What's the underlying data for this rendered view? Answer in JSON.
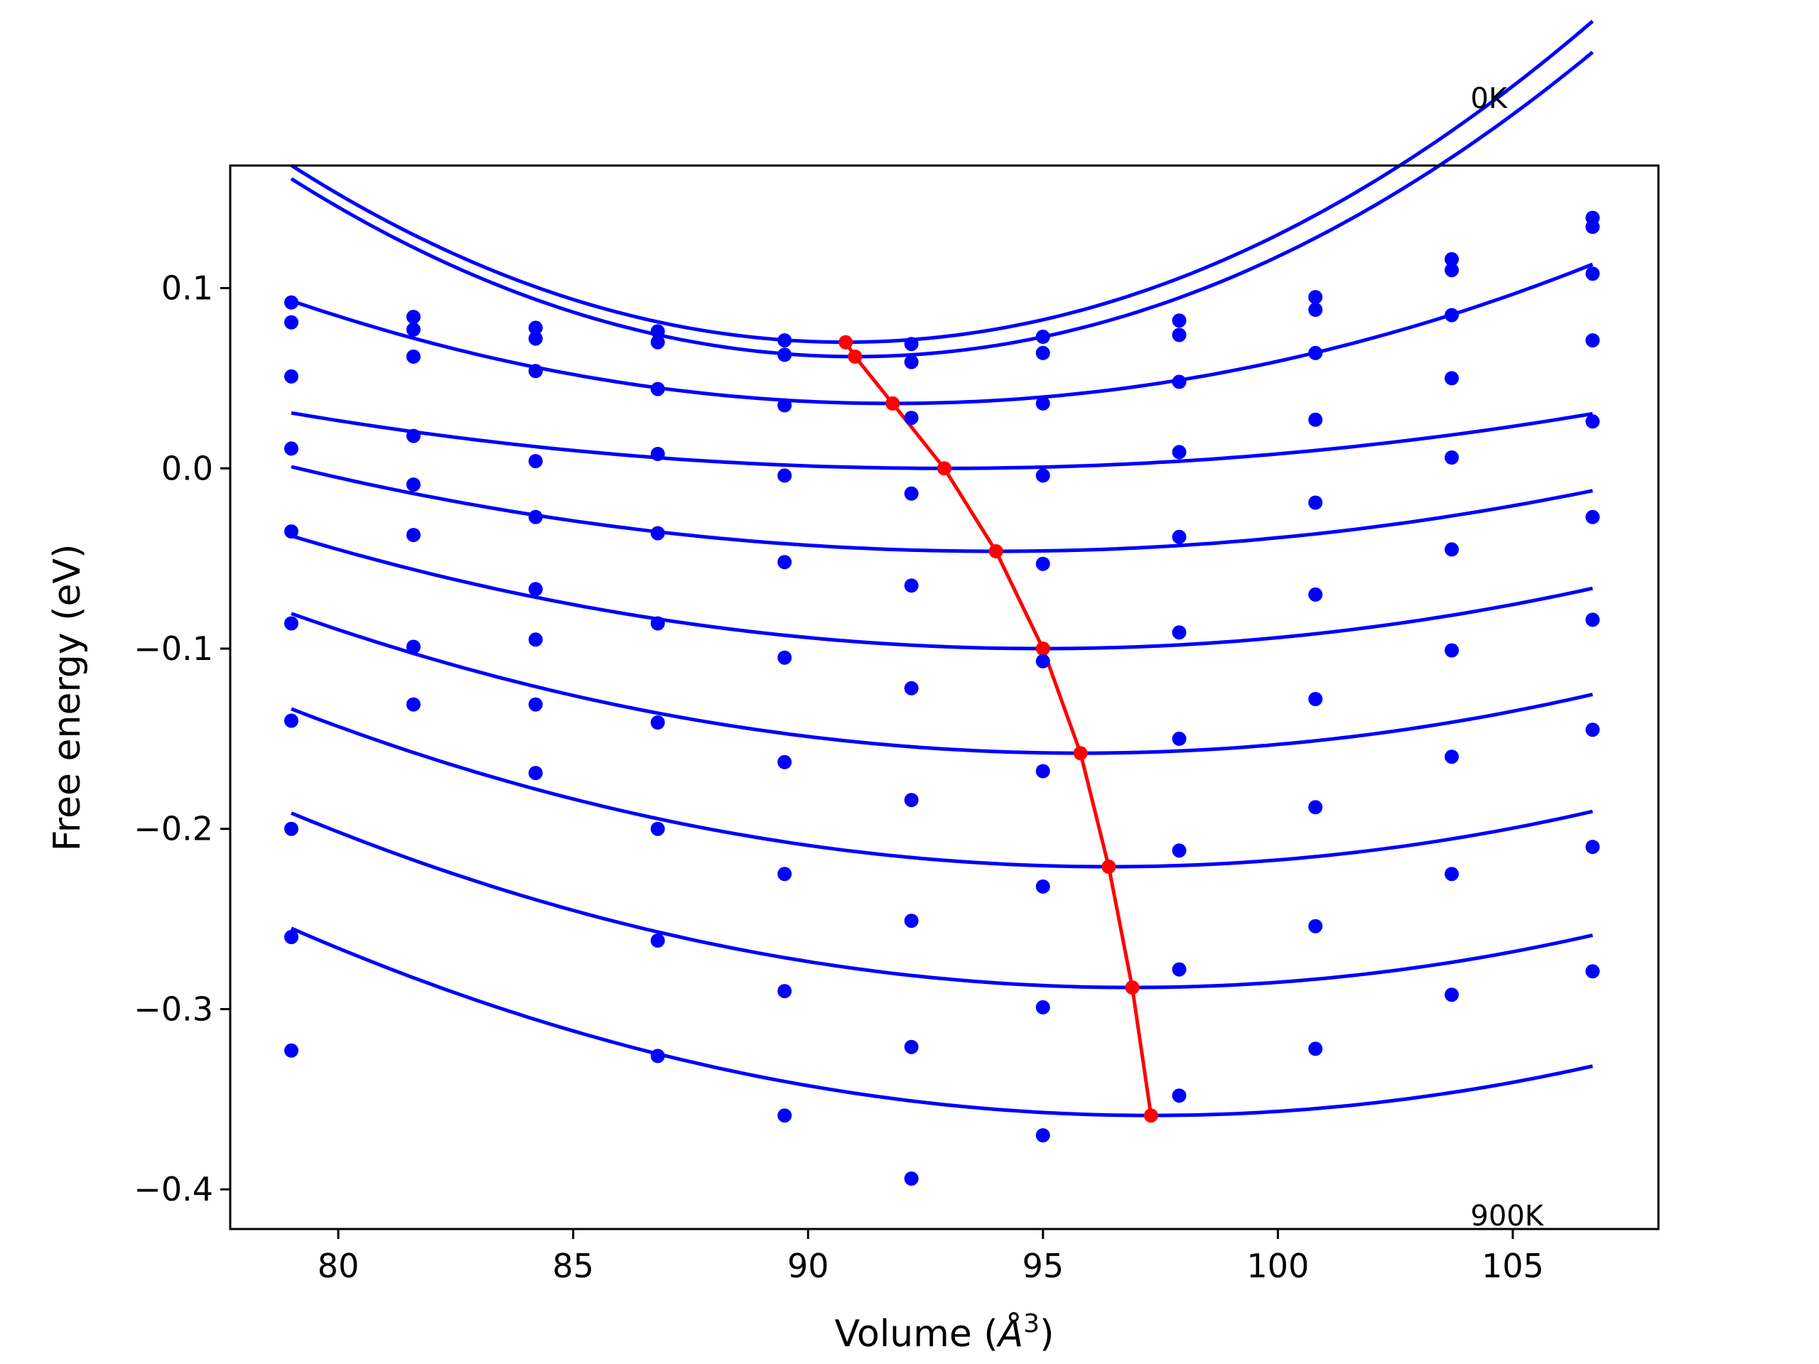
{
  "chart_data": {
    "type": "scatter",
    "title": "",
    "xlabel": "Volume (",
    "xlabel_symbol": "Å",
    "xlabel_superscript": "3",
    "xlabel_end": ")",
    "ylabel": "Free energy (eV)",
    "xlim": [
      77.7,
      108.1
    ],
    "ylim": [
      -0.422,
      0.168
    ],
    "xticks": [
      80,
      85,
      90,
      95,
      100,
      105
    ],
    "xtick_labels": [
      "80",
      "85",
      "90",
      "95",
      "100",
      "105"
    ],
    "yticks": [
      0.1,
      0.0,
      -0.1,
      -0.2,
      -0.3,
      -0.4
    ],
    "ytick_labels": [
      "0.1",
      "0.0",
      "−0.1",
      "−0.2",
      "−0.3",
      "−0.4"
    ],
    "annotations": [
      {
        "text": "0K",
        "x": 104.1,
        "y": 0.2
      },
      {
        "text": "900K",
        "x": 104.1,
        "y": -0.42
      }
    ],
    "colors": {
      "points": "#0000ff",
      "fits": "#0000ff",
      "minima": "#ff0000",
      "axes": "#000000"
    },
    "volumes": [
      79.0,
      81.6,
      84.2,
      86.8,
      89.5,
      92.2,
      95.0,
      97.9,
      100.8,
      103.7,
      106.7
    ],
    "series": [
      {
        "points": [
          0.092,
          0.084,
          0.078,
          0.076,
          0.071,
          0.069,
          0.073,
          0.082,
          0.095,
          0.116,
          0.139
        ],
        "fit_coeffs": [
          0.0007044,
          0.07
        ],
        "v_min": 90.8
      },
      {
        "points": [
          0.081,
          0.077,
          0.072,
          0.07,
          0.063,
          0.059,
          0.064,
          0.074,
          0.088,
          0.11,
          0.134
        ],
        "fit_coeffs": [
          0.0006853,
          0.062
        ],
        "v_min": 91.0
      },
      {
        "points": [
          0.051,
          0.062,
          0.054,
          0.044,
          0.035,
          0.028,
          0.036,
          0.048,
          0.064,
          0.085,
          0.108
        ],
        "fit_coeffs": [
          0.0003478,
          0.036
        ],
        "v_min": 91.8
      },
      {
        "points": [
          0.011,
          0.018,
          0.004,
          0.008,
          -0.004,
          -0.014,
          -0.004,
          0.009,
          0.027,
          0.05,
          0.071
        ],
        "fit_coeffs": [
          0.0001591,
          0.0
        ],
        "v_min": 92.9
      },
      {
        "points": [
          -0.035,
          -0.009,
          -0.027,
          -0.036,
          -0.052,
          -0.065,
          -0.053,
          -0.038,
          -0.019,
          0.006,
          0.026
        ],
        "fit_coeffs": [
          0.0002084,
          -0.046
        ],
        "v_min": 94.0
      },
      {
        "points": [
          -0.086,
          -0.037,
          -0.067,
          -0.086,
          -0.105,
          -0.122,
          -0.107,
          -0.091,
          -0.07,
          -0.045,
          -0.027
        ],
        "fit_coeffs": [
          0.0002443,
          -0.1
        ],
        "v_min": 95.0
      },
      {
        "points": [
          -0.14,
          -0.099,
          -0.095,
          -0.141,
          -0.163,
          -0.184,
          -0.168,
          -0.15,
          -0.128,
          -0.101,
          -0.084
        ],
        "fit_coeffs": [
          0.0002744,
          -0.158
        ],
        "v_min": 95.8
      },
      {
        "points": [
          -0.2,
          -0.131,
          -0.131,
          -0.2,
          -0.225,
          -0.251,
          -0.232,
          -0.212,
          -0.188,
          -0.16,
          -0.145
        ],
        "fit_coeffs": [
          0.0002892,
          -0.221
        ],
        "v_min": 96.4
      },
      {
        "points": [
          -0.26,
          null,
          -0.169,
          -0.262,
          -0.29,
          -0.321,
          -0.299,
          -0.278,
          -0.254,
          -0.225,
          -0.21
        ],
        "fit_coeffs": [
          0.000302,
          -0.288
        ],
        "v_min": 96.9
      },
      {
        "points": [
          -0.323,
          null,
          null,
          -0.326,
          -0.359,
          -0.394,
          -0.37,
          -0.348,
          -0.322,
          -0.292,
          -0.279
        ],
        "fit_coeffs": [
          0.00031,
          -0.359
        ],
        "v_min": 97.3
      }
    ],
    "minima_curve": {
      "x": [
        90.8,
        91.0,
        91.8,
        92.9,
        94.0,
        95.0,
        95.8,
        96.4,
        96.9,
        97.3
      ],
      "y": [
        0.07,
        0.062,
        0.036,
        0.0,
        -0.046,
        -0.1,
        -0.158,
        -0.221,
        -0.288,
        -0.359
      ]
    }
  }
}
